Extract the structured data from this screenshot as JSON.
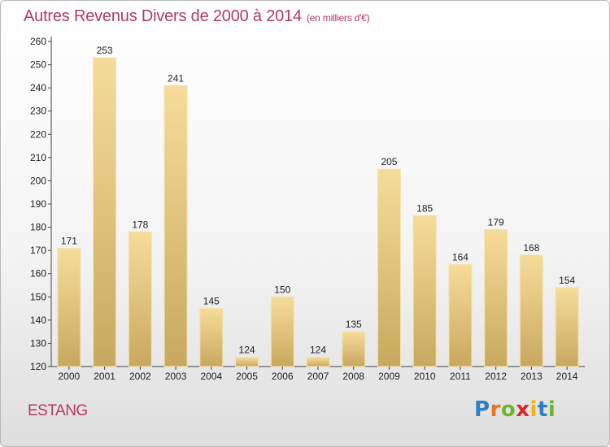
{
  "title": "Autres Revenus Divers de 2000 à 2014",
  "unit_note": "(en milliers d'€)",
  "commune": "ESTANG",
  "logo": {
    "text": "Proxiti",
    "letter_colors": [
      "#2e7fc1",
      "#e9731b",
      "#6fb52c",
      "#d8262e",
      "#f0b400",
      "#2e7fc1",
      "#6fb52c"
    ]
  },
  "colors": {
    "title": "#b23a63",
    "bar_top": "#f6dc9a",
    "bar_bottom": "#c8a85e"
  },
  "chart_data": {
    "type": "bar",
    "title": "Autres Revenus Divers de 2000 à 2014",
    "subtitle": "(en milliers d'€)",
    "xlabel": "",
    "ylabel": "",
    "categories": [
      "2000",
      "2001",
      "2002",
      "2003",
      "2004",
      "2005",
      "2006",
      "2007",
      "2008",
      "2009",
      "2010",
      "2011",
      "2012",
      "2013",
      "2014"
    ],
    "values": [
      171,
      253,
      178,
      241,
      145,
      124,
      150,
      124,
      135,
      205,
      185,
      164,
      179,
      168,
      154
    ],
    "ylim": [
      120,
      260
    ],
    "yticks": [
      120,
      130,
      140,
      150,
      160,
      170,
      180,
      190,
      200,
      210,
      220,
      230,
      240,
      250,
      260
    ],
    "grid": false,
    "legend": "none"
  }
}
